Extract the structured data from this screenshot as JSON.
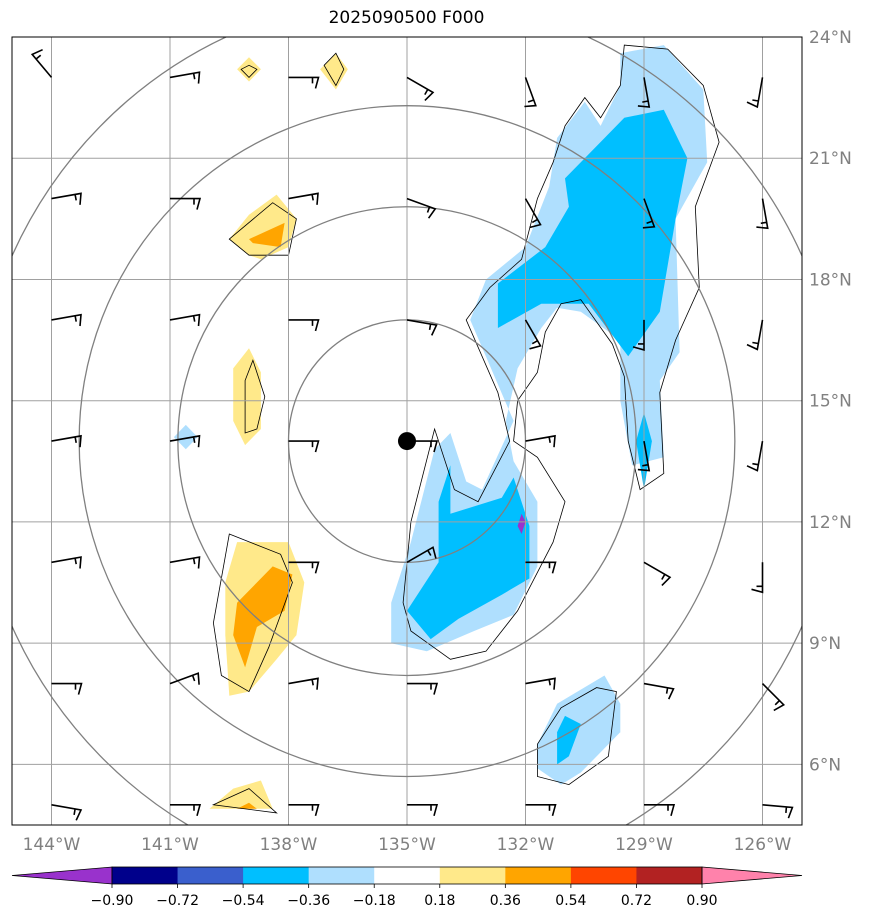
{
  "chart_data": {
    "type": "map-contour",
    "title": "2025090500 F000",
    "lon_range": [
      -145,
      -125
    ],
    "lat_range": [
      4.5,
      24
    ],
    "xticks": [
      {
        "value": -144,
        "label": "144°W"
      },
      {
        "value": -141,
        "label": "141°W"
      },
      {
        "value": -138,
        "label": "138°W"
      },
      {
        "value": -135,
        "label": "135°W"
      },
      {
        "value": -132,
        "label": "132°W"
      },
      {
        "value": -129,
        "label": "129°W"
      },
      {
        "value": -126,
        "label": "126°W"
      }
    ],
    "yticks": [
      {
        "value": 24,
        "label": "24°N"
      },
      {
        "value": 21,
        "label": "21°N"
      },
      {
        "value": 18,
        "label": "18°N"
      },
      {
        "value": 15,
        "label": "15°N"
      },
      {
        "value": 12,
        "label": "12°N"
      },
      {
        "value": 9,
        "label": "9°N"
      },
      {
        "value": 6,
        "label": "6°N"
      }
    ],
    "center": {
      "lon": -135,
      "lat": 14
    },
    "range_rings_deg": [
      3,
      5.8,
      8.3,
      11
    ],
    "colorbar": {
      "levels": [
        "−0.90",
        "−0.72",
        "−0.54",
        "−0.36",
        "−0.18",
        "0.18",
        "0.36",
        "0.54",
        "0.72",
        "0.90"
      ],
      "colors": [
        "#9932cc",
        "#00008b",
        "#3a5fcd",
        "#00bfff",
        "#afdffe",
        "#ffffff",
        "#ffe98a",
        "#ffa500",
        "#ff4500",
        "#b22222",
        "#ff82ab"
      ],
      "extend": "both"
    },
    "shaded_regions": [
      {
        "level": "-0.36",
        "color": "#afdffe",
        "points": [
          [
            -131.2,
            21.5
          ],
          [
            -130.5,
            22.4
          ],
          [
            -130.1,
            21.8
          ],
          [
            -129.6,
            22.8
          ],
          [
            -129.6,
            23.6
          ],
          [
            -128.5,
            23.8
          ],
          [
            -127.5,
            22.7
          ],
          [
            -127.4,
            20.9
          ],
          [
            -128.2,
            19.5
          ],
          [
            -128.1,
            16.2
          ],
          [
            -128.6,
            15.5
          ],
          [
            -128.5,
            13.6
          ],
          [
            -129.3,
            13.4
          ],
          [
            -129.6,
            15.0
          ],
          [
            -129.6,
            16.5
          ],
          [
            -130.6,
            17.2
          ],
          [
            -131.2,
            17.3
          ],
          [
            -131.6,
            16.8
          ],
          [
            -132.2,
            15.8
          ],
          [
            -132.5,
            14.5
          ],
          [
            -132.3,
            13.5
          ],
          [
            -132.0,
            13.0
          ],
          [
            -131.7,
            12.5
          ],
          [
            -131.7,
            10.9
          ],
          [
            -132.3,
            9.7
          ],
          [
            -133.3,
            9.3
          ],
          [
            -134.5,
            8.8
          ],
          [
            -135.4,
            9.0
          ],
          [
            -135.4,
            10.0
          ],
          [
            -134.9,
            11.5
          ],
          [
            -134.3,
            13.8
          ],
          [
            -133.9,
            14.2
          ],
          [
            -133.5,
            13.0
          ],
          [
            -133.1,
            12.8
          ],
          [
            -132.3,
            14.5
          ],
          [
            -133.4,
            17.0
          ],
          [
            -133.0,
            18.0
          ],
          [
            -132.0,
            18.8
          ],
          [
            -131.4,
            20.3
          ]
        ]
      },
      {
        "level": "-0.54",
        "color": "#00bfff",
        "points": [
          [
            -130.6,
            20.9
          ],
          [
            -129.5,
            22.0
          ],
          [
            -128.5,
            22.2
          ],
          [
            -127.9,
            21.0
          ],
          [
            -128.2,
            19.5
          ],
          [
            -128.6,
            17.2
          ],
          [
            -129.4,
            16.1
          ],
          [
            -130.4,
            17.4
          ],
          [
            -131.6,
            17.4
          ],
          [
            -132.7,
            16.8
          ],
          [
            -132.7,
            17.9
          ],
          [
            -131.5,
            18.8
          ],
          [
            -130.9,
            19.8
          ],
          [
            -131.0,
            20.5
          ]
        ]
      },
      {
        "level": "-0.54",
        "color": "#00bfff",
        "points": [
          [
            -133.9,
            13.4
          ],
          [
            -133.9,
            12.2
          ],
          [
            -132.6,
            12.6
          ],
          [
            -132.3,
            13.1
          ],
          [
            -131.9,
            11.9
          ],
          [
            -131.9,
            10.6
          ],
          [
            -132.6,
            10.2
          ],
          [
            -133.7,
            9.6
          ],
          [
            -134.4,
            9.1
          ],
          [
            -135.0,
            9.8
          ],
          [
            -134.2,
            11.0
          ],
          [
            -134.2,
            12.5
          ]
        ]
      },
      {
        "level": "-0.54",
        "color": "#00bfff",
        "points": [
          [
            -129.0,
            14.7
          ],
          [
            -129.2,
            14.0
          ],
          [
            -129.0,
            12.8
          ],
          [
            -128.8,
            14.0
          ]
        ]
      },
      {
        "level": "-0.90",
        "color": "#9932cc",
        "points": [
          [
            -132.1,
            12.2
          ],
          [
            -132.2,
            11.9
          ],
          [
            -132.1,
            11.7
          ],
          [
            -132.0,
            12.0
          ]
        ]
      },
      {
        "level": "-0.36",
        "color": "#afdffe",
        "points": [
          [
            -131.7,
            6.5
          ],
          [
            -131.2,
            7.5
          ],
          [
            -130.0,
            8.2
          ],
          [
            -129.6,
            7.5
          ],
          [
            -129.6,
            6.8
          ],
          [
            -130.6,
            5.8
          ],
          [
            -131.1,
            5.5
          ],
          [
            -131.7,
            5.9
          ]
        ]
      },
      {
        "level": "-0.54",
        "color": "#00bfff",
        "points": [
          [
            -131.2,
            6.8
          ],
          [
            -131.0,
            7.2
          ],
          [
            -130.6,
            7.0
          ],
          [
            -130.9,
            6.2
          ],
          [
            -131.2,
            6.0
          ]
        ]
      },
      {
        "level": "-0.36",
        "color": "#afdffe",
        "points": [
          [
            -140.9,
            14.1
          ],
          [
            -140.6,
            14.4
          ],
          [
            -140.3,
            14.1
          ],
          [
            -140.6,
            13.8
          ]
        ]
      },
      {
        "level": "0.36",
        "color": "#ffe98a",
        "points": [
          [
            -139.5,
            19.0
          ],
          [
            -139.0,
            19.6
          ],
          [
            -138.3,
            20.1
          ],
          [
            -137.8,
            19.5
          ],
          [
            -138.0,
            18.8
          ],
          [
            -138.7,
            18.5
          ],
          [
            -139.0,
            18.6
          ]
        ]
      },
      {
        "level": "0.54",
        "color": "#ffa500",
        "points": [
          [
            -139.0,
            19.0
          ],
          [
            -138.1,
            19.4
          ],
          [
            -138.2,
            18.8
          ],
          [
            -138.9,
            18.9
          ]
        ]
      },
      {
        "level": "0.36",
        "color": "#ffe98a",
        "points": [
          [
            -139.4,
            15.8
          ],
          [
            -139.0,
            16.3
          ],
          [
            -138.7,
            15.7
          ],
          [
            -138.7,
            14.3
          ],
          [
            -139.1,
            13.9
          ],
          [
            -139.4,
            14.5
          ]
        ]
      },
      {
        "level": "0.36",
        "color": "#ffe98a",
        "points": [
          [
            -139.6,
            10.5
          ],
          [
            -139.3,
            11.5
          ],
          [
            -138.8,
            11.5
          ],
          [
            -138.0,
            11.5
          ],
          [
            -137.6,
            10.5
          ],
          [
            -137.8,
            9.2
          ],
          [
            -138.3,
            8.6
          ],
          [
            -139.0,
            7.8
          ],
          [
            -139.5,
            7.7
          ],
          [
            -139.6,
            9.2
          ]
        ]
      },
      {
        "level": "0.54",
        "color": "#ffa500",
        "points": [
          [
            -139.3,
            10.0
          ],
          [
            -138.4,
            10.9
          ],
          [
            -137.9,
            10.7
          ],
          [
            -138.1,
            9.8
          ],
          [
            -138.8,
            9.4
          ],
          [
            -139.1,
            8.4
          ],
          [
            -139.4,
            9.2
          ]
        ]
      },
      {
        "level": "0.36",
        "color": "#ffe98a",
        "points": [
          [
            -139.3,
            23.2
          ],
          [
            -139.0,
            23.5
          ],
          [
            -138.7,
            23.2
          ],
          [
            -139.0,
            22.9
          ]
        ]
      },
      {
        "level": "0.36",
        "color": "#ffe98a",
        "points": [
          [
            -137.2,
            23.2
          ],
          [
            -136.8,
            23.6
          ],
          [
            -136.5,
            23.2
          ],
          [
            -136.8,
            22.7
          ]
        ]
      },
      {
        "level": "0.36",
        "color": "#ffe98a",
        "points": [
          [
            -140.0,
            4.9
          ],
          [
            -139.4,
            5.4
          ],
          [
            -138.7,
            5.6
          ],
          [
            -138.4,
            4.9
          ]
        ]
      },
      {
        "level": "0.54",
        "color": "#ffa500",
        "points": [
          [
            -139.3,
            4.9
          ],
          [
            -139.0,
            5.05
          ],
          [
            -138.8,
            4.9
          ]
        ]
      }
    ],
    "contour_lines": [
      [
        [
          -131.0,
          21.8
        ],
        [
          -130.5,
          22.5
        ],
        [
          -130.1,
          22.0
        ],
        [
          -129.6,
          22.8
        ],
        [
          -129.5,
          23.8
        ],
        [
          -128.4,
          23.7
        ],
        [
          -127.5,
          22.8
        ],
        [
          -127.1,
          21.4
        ],
        [
          -127.7,
          19.8
        ],
        [
          -127.6,
          17.8
        ],
        [
          -128.2,
          16.5
        ],
        [
          -128.6,
          15.2
        ],
        [
          -128.5,
          13.2
        ],
        [
          -129.1,
          12.8
        ],
        [
          -129.4,
          14.0
        ],
        [
          -129.5,
          15.6
        ],
        [
          -129.8,
          16.4
        ],
        [
          -130.6,
          17.5
        ],
        [
          -131.1,
          17.4
        ],
        [
          -131.5,
          16.7
        ],
        [
          -131.7,
          15.7
        ],
        [
          -132.2,
          15.0
        ],
        [
          -132.3,
          14.0
        ],
        [
          -131.7,
          13.6
        ],
        [
          -131.0,
          12.5
        ],
        [
          -131.3,
          11.5
        ],
        [
          -132.2,
          9.8
        ],
        [
          -133.0,
          8.8
        ],
        [
          -133.9,
          8.6
        ],
        [
          -134.9,
          9.3
        ],
        [
          -135.1,
          10.0
        ],
        [
          -134.9,
          12.0
        ],
        [
          -134.3,
          14.3
        ],
        [
          -133.8,
          12.8
        ],
        [
          -133.2,
          12.5
        ],
        [
          -132.4,
          14.0
        ],
        [
          -132.7,
          15.2
        ],
        [
          -133.5,
          17.0
        ],
        [
          -132.9,
          17.8
        ],
        [
          -132.1,
          18.5
        ],
        [
          -131.7,
          20.0
        ],
        [
          -131.3,
          20.9
        ]
      ],
      [
        [
          -131.7,
          6.5
        ],
        [
          -131.1,
          7.4
        ],
        [
          -130.2,
          7.9
        ],
        [
          -129.7,
          7.8
        ],
        [
          -129.9,
          6.2
        ],
        [
          -130.9,
          5.5
        ],
        [
          -131.7,
          5.7
        ]
      ],
      [
        [
          -139.5,
          19.0
        ],
        [
          -138.4,
          19.9
        ],
        [
          -137.8,
          19.5
        ],
        [
          -138.0,
          18.6
        ],
        [
          -139.0,
          18.6
        ]
      ],
      [
        [
          -139.1,
          15.5
        ],
        [
          -138.9,
          16.0
        ],
        [
          -138.6,
          15.1
        ],
        [
          -138.8,
          14.3
        ],
        [
          -139.1,
          14.2
        ]
      ],
      [
        [
          -139.5,
          11.7
        ],
        [
          -138.2,
          11.2
        ],
        [
          -137.9,
          10.5
        ],
        [
          -138.5,
          8.9
        ],
        [
          -139.0,
          7.8
        ],
        [
          -139.7,
          8.2
        ],
        [
          -139.9,
          9.5
        ]
      ],
      [
        [
          -139.2,
          23.2
        ],
        [
          -139.0,
          23.3
        ],
        [
          -138.8,
          23.2
        ],
        [
          -139.0,
          23.0
        ]
      ],
      [
        [
          -137.1,
          23.3
        ],
        [
          -136.8,
          23.6
        ],
        [
          -136.6,
          23.2
        ],
        [
          -136.8,
          22.8
        ]
      ],
      [
        [
          -139.9,
          5.0
        ],
        [
          -139.0,
          5.4
        ],
        [
          -138.3,
          4.8
        ]
      ]
    ],
    "barbs": {
      "lons": [
        -144,
        -141,
        -138,
        -135,
        -132,
        -129,
        -126
      ],
      "lats": [
        23,
        20,
        17,
        14,
        11,
        8,
        5
      ],
      "directions": [
        [
          320,
          80,
          90,
          120,
          160,
          170,
          190
        ],
        [
          80,
          90,
          80,
          110,
          150,
          160,
          170
        ],
        [
          80,
          80,
          90,
          100,
          150,
          180,
          190
        ],
        [
          80,
          80,
          90,
          90,
          80,
          170,
          190
        ],
        [
          80,
          80,
          90,
          60,
          90,
          120,
          180
        ],
        [
          90,
          70,
          80,
          90,
          80,
          100,
          135
        ],
        [
          100,
          90,
          90,
          90,
          90,
          90,
          95
        ]
      ]
    }
  }
}
